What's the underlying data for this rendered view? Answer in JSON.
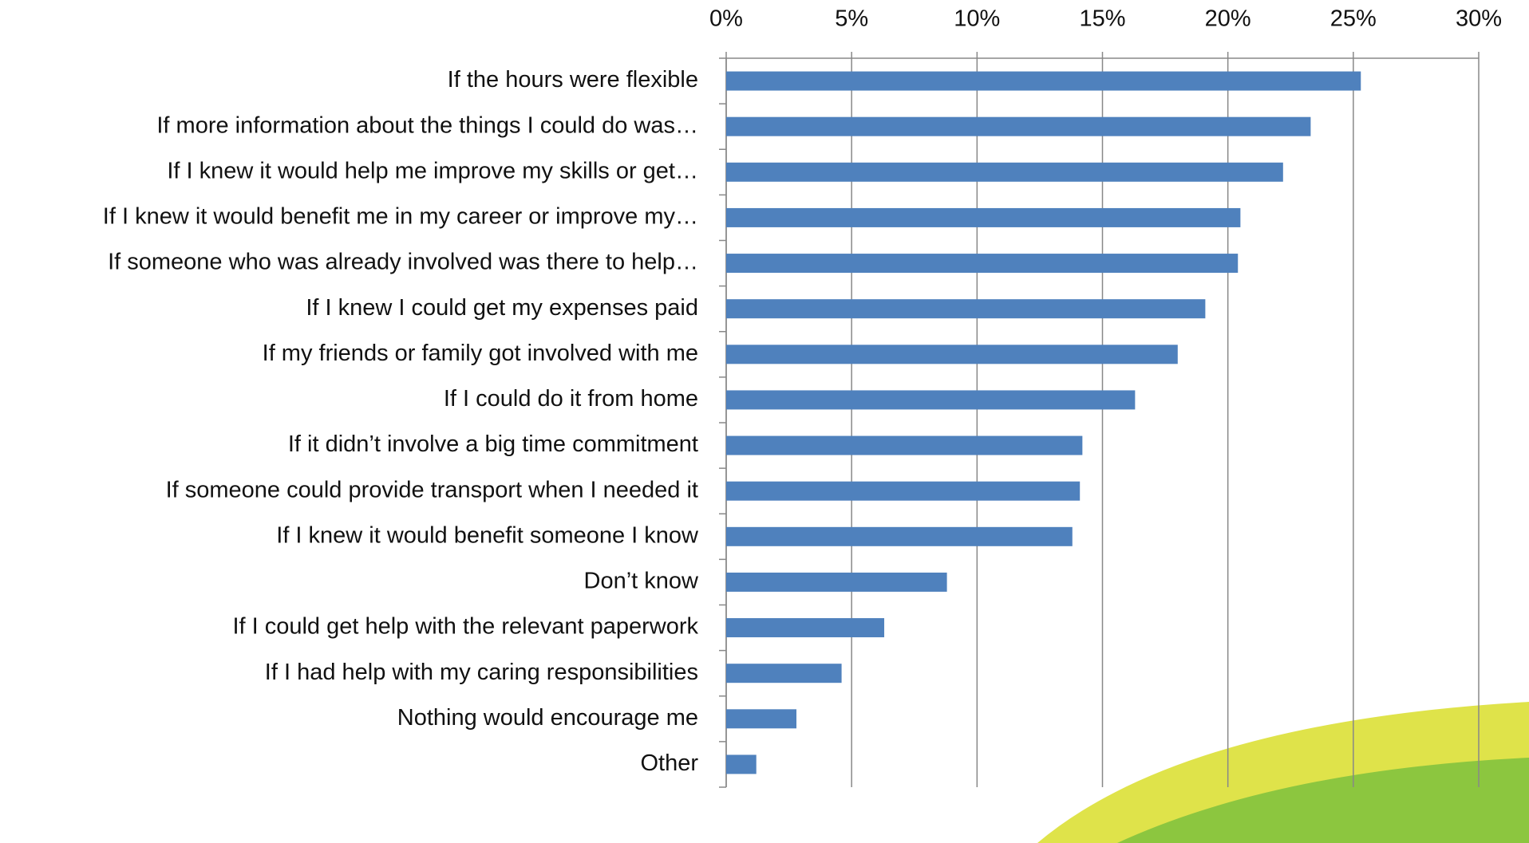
{
  "chart_data": {
    "type": "hbar",
    "categories": [
      "If the hours were flexible",
      "If more information about the things I could do was…",
      "If I knew it would help me improve my skills or get…",
      "If I knew it would benefit me in my career or improve my…",
      "If someone who was already involved was there to help…",
      "If I knew I could get my expenses paid",
      "If my friends or family got involved with me",
      "If I could do it from home",
      "If it didn’t involve a big time commitment",
      "If someone could provide transport when I needed it",
      "If I knew it would benefit someone I know",
      "Don’t know",
      "If I could get help with the relevant paperwork",
      "If I had help with my caring responsibilities",
      "Nothing would encourage me",
      "Other"
    ],
    "values": [
      25.3,
      23.3,
      22.2,
      20.5,
      20.4,
      19.1,
      18.0,
      16.3,
      14.2,
      14.1,
      13.8,
      8.8,
      6.3,
      4.6,
      2.8,
      1.2
    ],
    "color": "#4f81bd",
    "xlim": [
      0,
      30
    ],
    "xticks": [
      {
        "value": 0,
        "label": "0%"
      },
      {
        "value": 5,
        "label": "5%"
      },
      {
        "value": 10,
        "label": "10%"
      },
      {
        "value": 15,
        "label": "15%"
      },
      {
        "value": 20,
        "label": "20%"
      },
      {
        "value": 25,
        "label": "25%"
      },
      {
        "value": 30,
        "label": "30%"
      }
    ],
    "grid": true
  }
}
